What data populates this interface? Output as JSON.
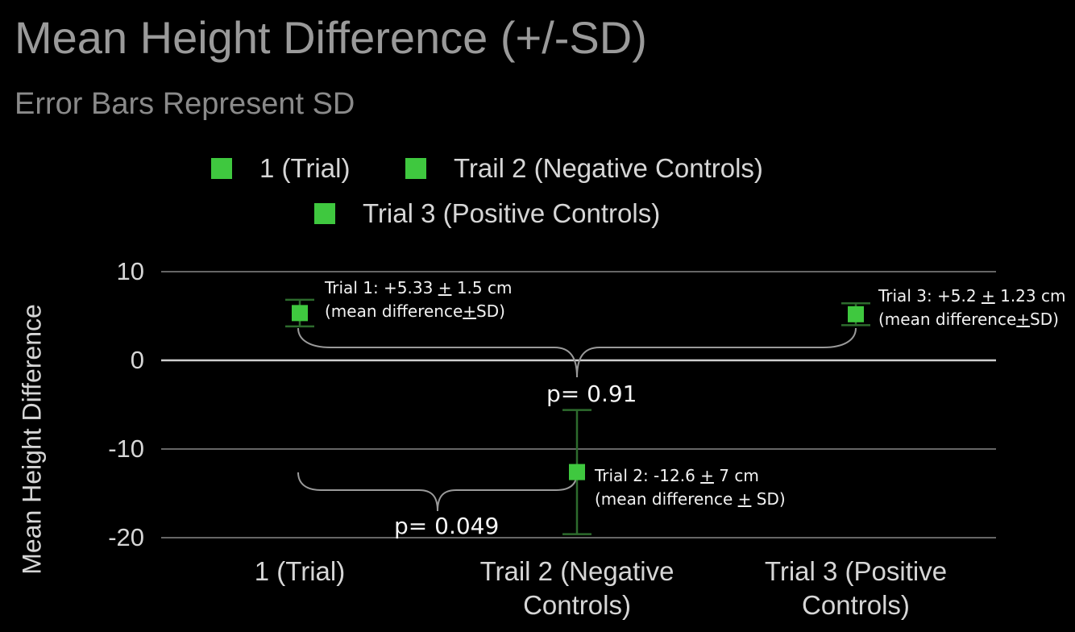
{
  "chart_data": {
    "type": "scatter",
    "title": "Mean Height Difference (+/-SD)",
    "subtitle": "Error Bars Represent SD",
    "xlabel": "",
    "ylabel": "Mean Height Difference",
    "categories": [
      "1 (Trial)",
      "Trail 2 (Negative Controls)",
      "Trial 3 (Positive Controls)"
    ],
    "category_labels": [
      [
        "1 (Trial)"
      ],
      [
        "Trail 2 (Negative",
        "Controls)"
      ],
      [
        "Trial 3 (Positive",
        "Controls)"
      ]
    ],
    "legend": {
      "placement": "top",
      "entries": [
        "1 (Trial)",
        "Trail 2 (Negative Controls)",
        "Trial 3 (Positive Controls)"
      ]
    },
    "series": [
      {
        "name": "1 (Trial)",
        "x": "1 (Trial)",
        "value": 5.33,
        "sd": 1.5
      },
      {
        "name": "Trail 2 (Negative Controls)",
        "x": "Trail 2 (Negative Controls)",
        "value": -12.6,
        "sd": 7
      },
      {
        "name": "Trial 3 (Positive Controls)",
        "x": "Trial 3 (Positive Controls)",
        "value": 5.2,
        "sd": 1.23
      }
    ],
    "ylim": [
      -20,
      10
    ],
    "yticks": [
      10,
      0,
      -10,
      -20
    ],
    "grid": true,
    "colors": {
      "marker": "#3fc83f",
      "errorbar": "#2d6b2d",
      "grid": "#666666",
      "zero_line": "#cfcfcf",
      "background": "#000000"
    },
    "annotations": {
      "trial1": {
        "line1_pre": "Trial 1: +5.33 ",
        "line1_pm": "+",
        "line1_post": " 1.5 cm",
        "line2_pre": "(mean difference",
        "line2_pm": "+",
        "line2_post": "SD)"
      },
      "trial2": {
        "line1_pre": "Trial 2: -12.6 ",
        "line1_pm": "+",
        "line1_post": " 7  cm",
        "line2_pre": "(mean difference ",
        "line2_pm": "+",
        "line2_post": " SD)"
      },
      "trial3": {
        "line1_pre": "Trial 3: +5.2 ",
        "line1_pm": "+",
        "line1_post": " 1.23  cm",
        "line2_pre": "(mean difference",
        "line2_pm": "+",
        "line2_post": "SD)"
      },
      "p_value_1_3": "p= 0.91",
      "p_value_1_2": "p= 0.049"
    }
  }
}
